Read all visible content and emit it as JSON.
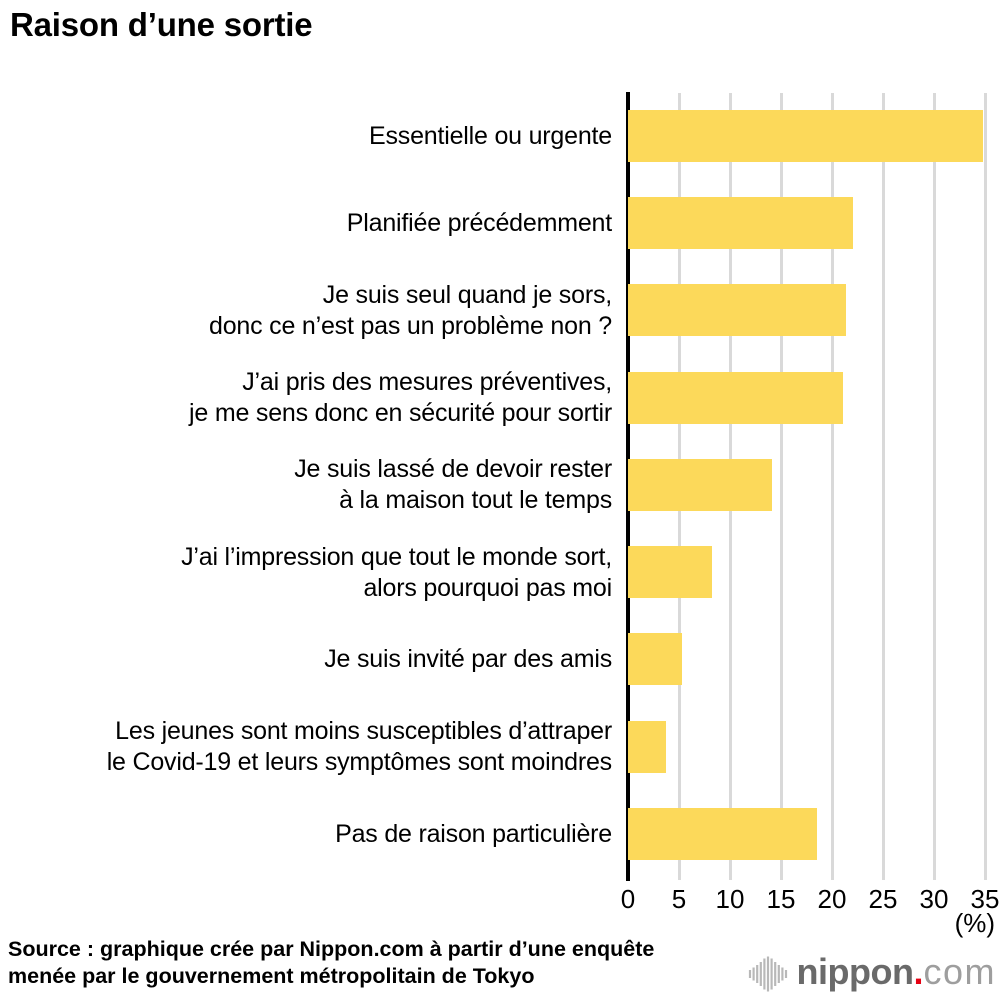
{
  "title": "Raison d’une sortie",
  "chart_data": {
    "type": "bar",
    "orientation": "horizontal",
    "title": "Raison d’une sortie",
    "categories": [
      [
        "Essentielle ou urgente"
      ],
      [
        "Planifiée précédemment"
      ],
      [
        "Je suis seul quand je sors,",
        "donc ce n’est pas un problème non ?"
      ],
      [
        "J’ai pris des mesures préventives,",
        "je me sens donc en sécurité pour sortir"
      ],
      [
        "Je suis lassé de devoir rester",
        "à la maison tout le temps"
      ],
      [
        "J’ai l’impression que tout le monde sort,",
        "alors pourquoi pas moi"
      ],
      [
        "Je suis invité par des amis"
      ],
      [
        "Les jeunes sont moins susceptibles d’attraper",
        "le Covid-19 et leurs symptômes sont moindres"
      ],
      [
        "Pas de raison particulière"
      ]
    ],
    "values": [
      34.8,
      22.1,
      21.4,
      21.1,
      14.1,
      8.2,
      5.3,
      3.7,
      18.5
    ],
    "xlim": [
      0,
      35
    ],
    "xticks": [
      0,
      5,
      10,
      15,
      20,
      25,
      30,
      35
    ],
    "unit_label": "(%)",
    "bar_color": "#FCD95A",
    "gridline_color": "#d9d9d9",
    "axis_color": "#000000",
    "grid": true,
    "legend": "none"
  },
  "source": {
    "line1": "Source : graphique crée par Nippon.com à partir d’une enquête",
    "line2": "menée par le gouvernement métropolitain de Tokyo"
  },
  "logo": {
    "name": "nippon",
    "dot": ".",
    "tld": "com",
    "icon": "sound-wave-bars-icon",
    "red": "#e60012",
    "gray_dark": "#6a6a6a",
    "gray_light": "#9e9e9e",
    "icon_gray": "#b8b8b8"
  }
}
